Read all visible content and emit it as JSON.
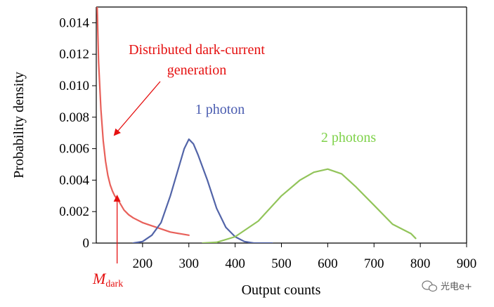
{
  "chart_data": {
    "type": "line",
    "xlabel": "Output counts",
    "ylabel": "Probability density",
    "xlim": [
      100,
      900
    ],
    "ylim": [
      0,
      0.015
    ],
    "xticks": [
      200,
      300,
      400,
      500,
      600,
      700,
      800,
      900
    ],
    "xtick_labels": [
      "200",
      "300",
      "400",
      "500",
      "600",
      "700",
      "800",
      "900"
    ],
    "yticks": [
      0,
      0.002,
      0.004,
      0.006,
      0.008,
      0.01,
      0.012,
      0.014
    ],
    "ytick_labels": [
      "0",
      "0.002",
      "0.004",
      "0.006",
      "0.008",
      "0.010",
      "0.012",
      "0.014"
    ],
    "grid": false,
    "series": [
      {
        "name": "Distributed dark-current generation",
        "color": "#e8605a",
        "x": [
          102,
          105,
          110,
          115,
          120,
          125,
          130,
          135,
          140,
          150,
          160,
          170,
          180,
          200,
          220,
          240,
          260,
          280,
          300
        ],
        "y": [
          0.015,
          0.0115,
          0.0085,
          0.0065,
          0.0052,
          0.0043,
          0.0037,
          0.0033,
          0.003,
          0.0026,
          0.0021,
          0.0018,
          0.0016,
          0.0013,
          0.0011,
          0.0009,
          0.0007,
          0.0006,
          0.0005
        ]
      },
      {
        "name": "1 photon",
        "color": "#5264a8",
        "x": [
          180,
          200,
          220,
          240,
          260,
          280,
          290,
          300,
          310,
          320,
          340,
          360,
          380,
          400,
          420,
          440,
          460,
          480
        ],
        "y": [
          0.0,
          0.0001,
          0.0005,
          0.0013,
          0.003,
          0.005,
          0.006,
          0.0066,
          0.0063,
          0.0056,
          0.004,
          0.0022,
          0.001,
          0.0004,
          0.0001,
          0.0,
          0.0,
          0.0
        ]
      },
      {
        "name": "2 photons",
        "color": "#92c45a",
        "x": [
          330,
          360,
          400,
          450,
          500,
          540,
          570,
          600,
          630,
          660,
          700,
          740,
          780,
          790
        ],
        "y": [
          0.0,
          5e-05,
          0.0004,
          0.0014,
          0.003,
          0.004,
          0.0045,
          0.0047,
          0.0044,
          0.0036,
          0.0024,
          0.0012,
          0.0006,
          0.0003
        ]
      }
    ],
    "annotations": {
      "dark_label_line1": "Distributed dark-current",
      "dark_label_line2": "generation",
      "one_photon_label": "1 photon",
      "two_photon_label": "2 photons",
      "mdark_main": "M",
      "mdark_sub": "dark",
      "mdark_x": 145
    }
  },
  "watermark": "光电e+",
  "colors": {
    "dark": "#e8605a",
    "one_photon": "#4a5cb0",
    "two_photons": "#7fd24a",
    "arrow": "#e51010",
    "axis": "#000000"
  }
}
